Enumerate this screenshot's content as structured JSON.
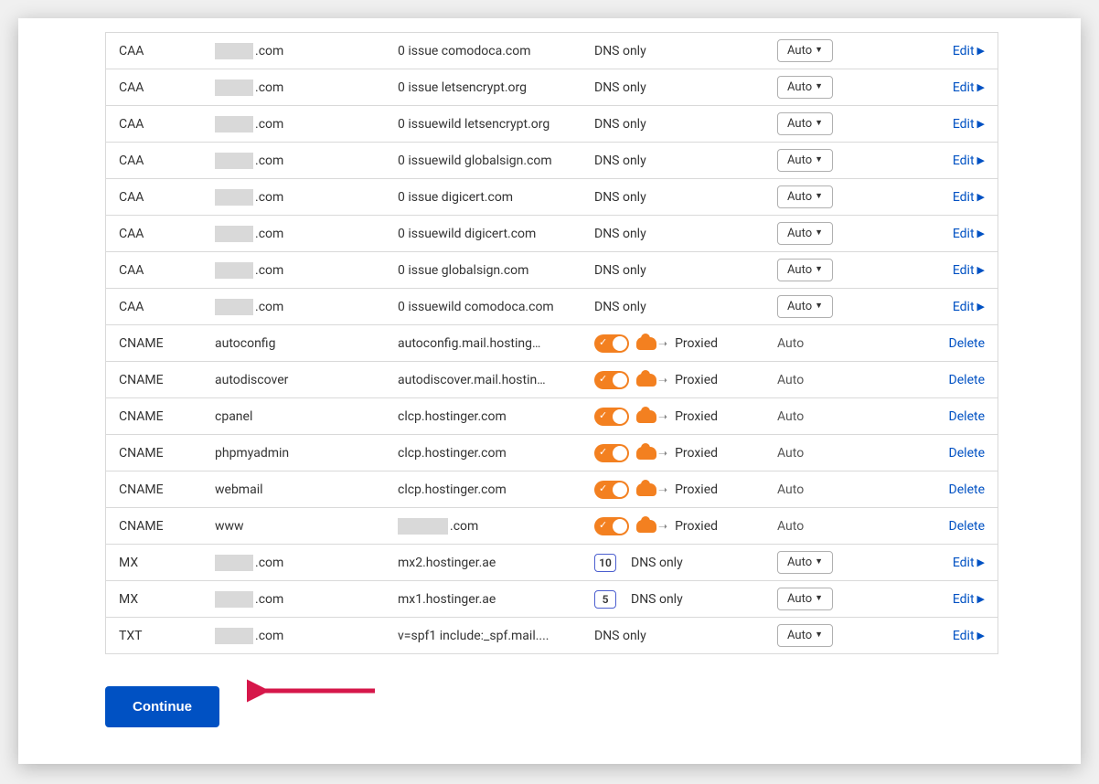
{
  "colors": {
    "link": "#0051c3",
    "orange": "#f38020",
    "border": "#d9d9d9",
    "arrow": "#d6174a",
    "button_bg": "#0051c3"
  },
  "labels": {
    "edit": "Edit",
    "delete": "Delete",
    "auto": "Auto",
    "continue": "Continue",
    "proxied": "Proxied",
    "dns_only": "DNS only"
  },
  "rows": [
    {
      "type": "CAA",
      "name_redacted": true,
      "name_suffix": ".com",
      "content": "0 issue comodoca.com",
      "proxy": "dns_only",
      "ttl_style": "button",
      "action": "edit"
    },
    {
      "type": "CAA",
      "name_redacted": true,
      "name_suffix": ".com",
      "content": "0 issue letsencrypt.org",
      "proxy": "dns_only",
      "ttl_style": "button",
      "action": "edit"
    },
    {
      "type": "CAA",
      "name_redacted": true,
      "name_suffix": ".com",
      "content": "0 issuewild letsencrypt.org",
      "proxy": "dns_only",
      "ttl_style": "button",
      "action": "edit"
    },
    {
      "type": "CAA",
      "name_redacted": true,
      "name_suffix": ".com",
      "content": "0 issuewild globalsign.com",
      "proxy": "dns_only",
      "ttl_style": "button",
      "action": "edit"
    },
    {
      "type": "CAA",
      "name_redacted": true,
      "name_suffix": ".com",
      "content": "0 issue digicert.com",
      "proxy": "dns_only",
      "ttl_style": "button",
      "action": "edit"
    },
    {
      "type": "CAA",
      "name_redacted": true,
      "name_suffix": ".com",
      "content": "0 issuewild digicert.com",
      "proxy": "dns_only",
      "ttl_style": "button",
      "action": "edit"
    },
    {
      "type": "CAA",
      "name_redacted": true,
      "name_suffix": ".com",
      "content": "0 issue globalsign.com",
      "proxy": "dns_only",
      "ttl_style": "button",
      "action": "edit"
    },
    {
      "type": "CAA",
      "name_redacted": true,
      "name_suffix": ".com",
      "content": "0 issuewild comodoca.com",
      "proxy": "dns_only",
      "ttl_style": "button",
      "action": "edit"
    },
    {
      "type": "CNAME",
      "name": "autoconfig",
      "content": "autoconfig.mail.hosting…",
      "proxy": "proxied",
      "ttl_style": "plain",
      "action": "delete"
    },
    {
      "type": "CNAME",
      "name": "autodiscover",
      "content": "autodiscover.mail.hostin…",
      "proxy": "proxied",
      "ttl_style": "plain",
      "action": "delete"
    },
    {
      "type": "CNAME",
      "name": "cpanel",
      "content": "clcp.hostinger.com",
      "proxy": "proxied",
      "ttl_style": "plain",
      "action": "delete"
    },
    {
      "type": "CNAME",
      "name": "phpmyadmin",
      "content": "clcp.hostinger.com",
      "proxy": "proxied",
      "ttl_style": "plain",
      "action": "delete"
    },
    {
      "type": "CNAME",
      "name": "webmail",
      "content": "clcp.hostinger.com",
      "proxy": "proxied",
      "ttl_style": "plain",
      "action": "delete"
    },
    {
      "type": "CNAME",
      "name": "www",
      "content_redacted": true,
      "content_suffix": ".com",
      "proxy": "proxied",
      "ttl_style": "plain",
      "action": "delete"
    },
    {
      "type": "MX",
      "name_redacted": true,
      "name_suffix": ".com",
      "content": "mx2.hostinger.ae",
      "priority": "10",
      "proxy": "dns_only",
      "ttl_style": "button",
      "action": "edit"
    },
    {
      "type": "MX",
      "name_redacted": true,
      "name_suffix": ".com",
      "content": "mx1.hostinger.ae",
      "priority": "5",
      "proxy": "dns_only",
      "ttl_style": "button",
      "action": "edit"
    },
    {
      "type": "TXT",
      "name_redacted": true,
      "name_suffix": ".com",
      "content": "v=spf1 include:_spf.mail....",
      "proxy": "dns_only",
      "ttl_style": "button",
      "action": "edit"
    }
  ]
}
